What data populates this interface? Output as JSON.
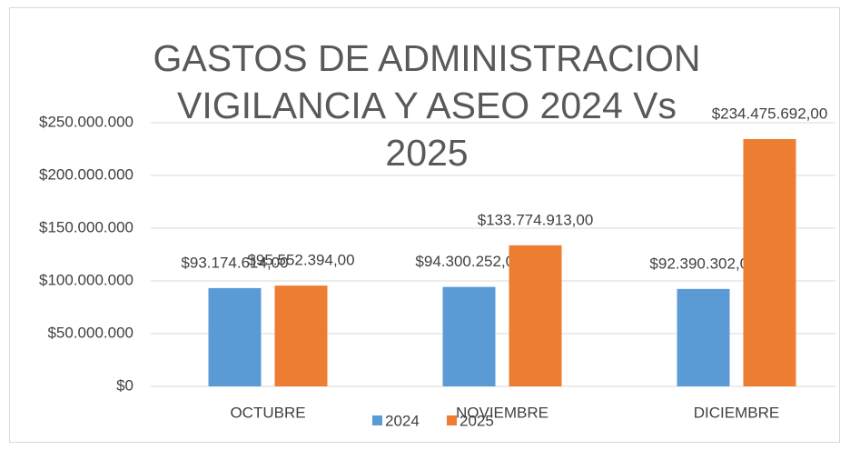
{
  "chart_data": {
    "type": "bar",
    "title": "GASTOS DE ADMINISTRACION VIGILANCIA Y ASEO 2024 Vs 2025",
    "categories": [
      "OCTUBRE",
      "NOVIEMBRE",
      "DICIEMBRE"
    ],
    "series": [
      {
        "name": "2024",
        "color": "#5b9bd5",
        "values": [
          93174614,
          94300252,
          92390302
        ],
        "value_labels": [
          "$93.174.614,00",
          "$94.300.252,00",
          "$92.390.302,00"
        ]
      },
      {
        "name": "2025",
        "color": "#ed7d31",
        "values": [
          95552394,
          133774913,
          234475692
        ],
        "value_labels": [
          "$95.552.394,00",
          "$133.774.913,00",
          "$234.475.692,00"
        ]
      }
    ],
    "ylim": [
      0,
      250000000
    ],
    "yticks": [
      {
        "value": 0,
        "label": "$0"
      },
      {
        "value": 50000000,
        "label": "$50.000.000"
      },
      {
        "value": 100000000,
        "label": "$100.000.000"
      },
      {
        "value": 150000000,
        "label": "$150.000.000"
      },
      {
        "value": 200000000,
        "label": "$200.000.000"
      },
      {
        "value": 250000000,
        "label": "$250.000.000"
      }
    ],
    "grid": true,
    "legend": "bottom"
  }
}
